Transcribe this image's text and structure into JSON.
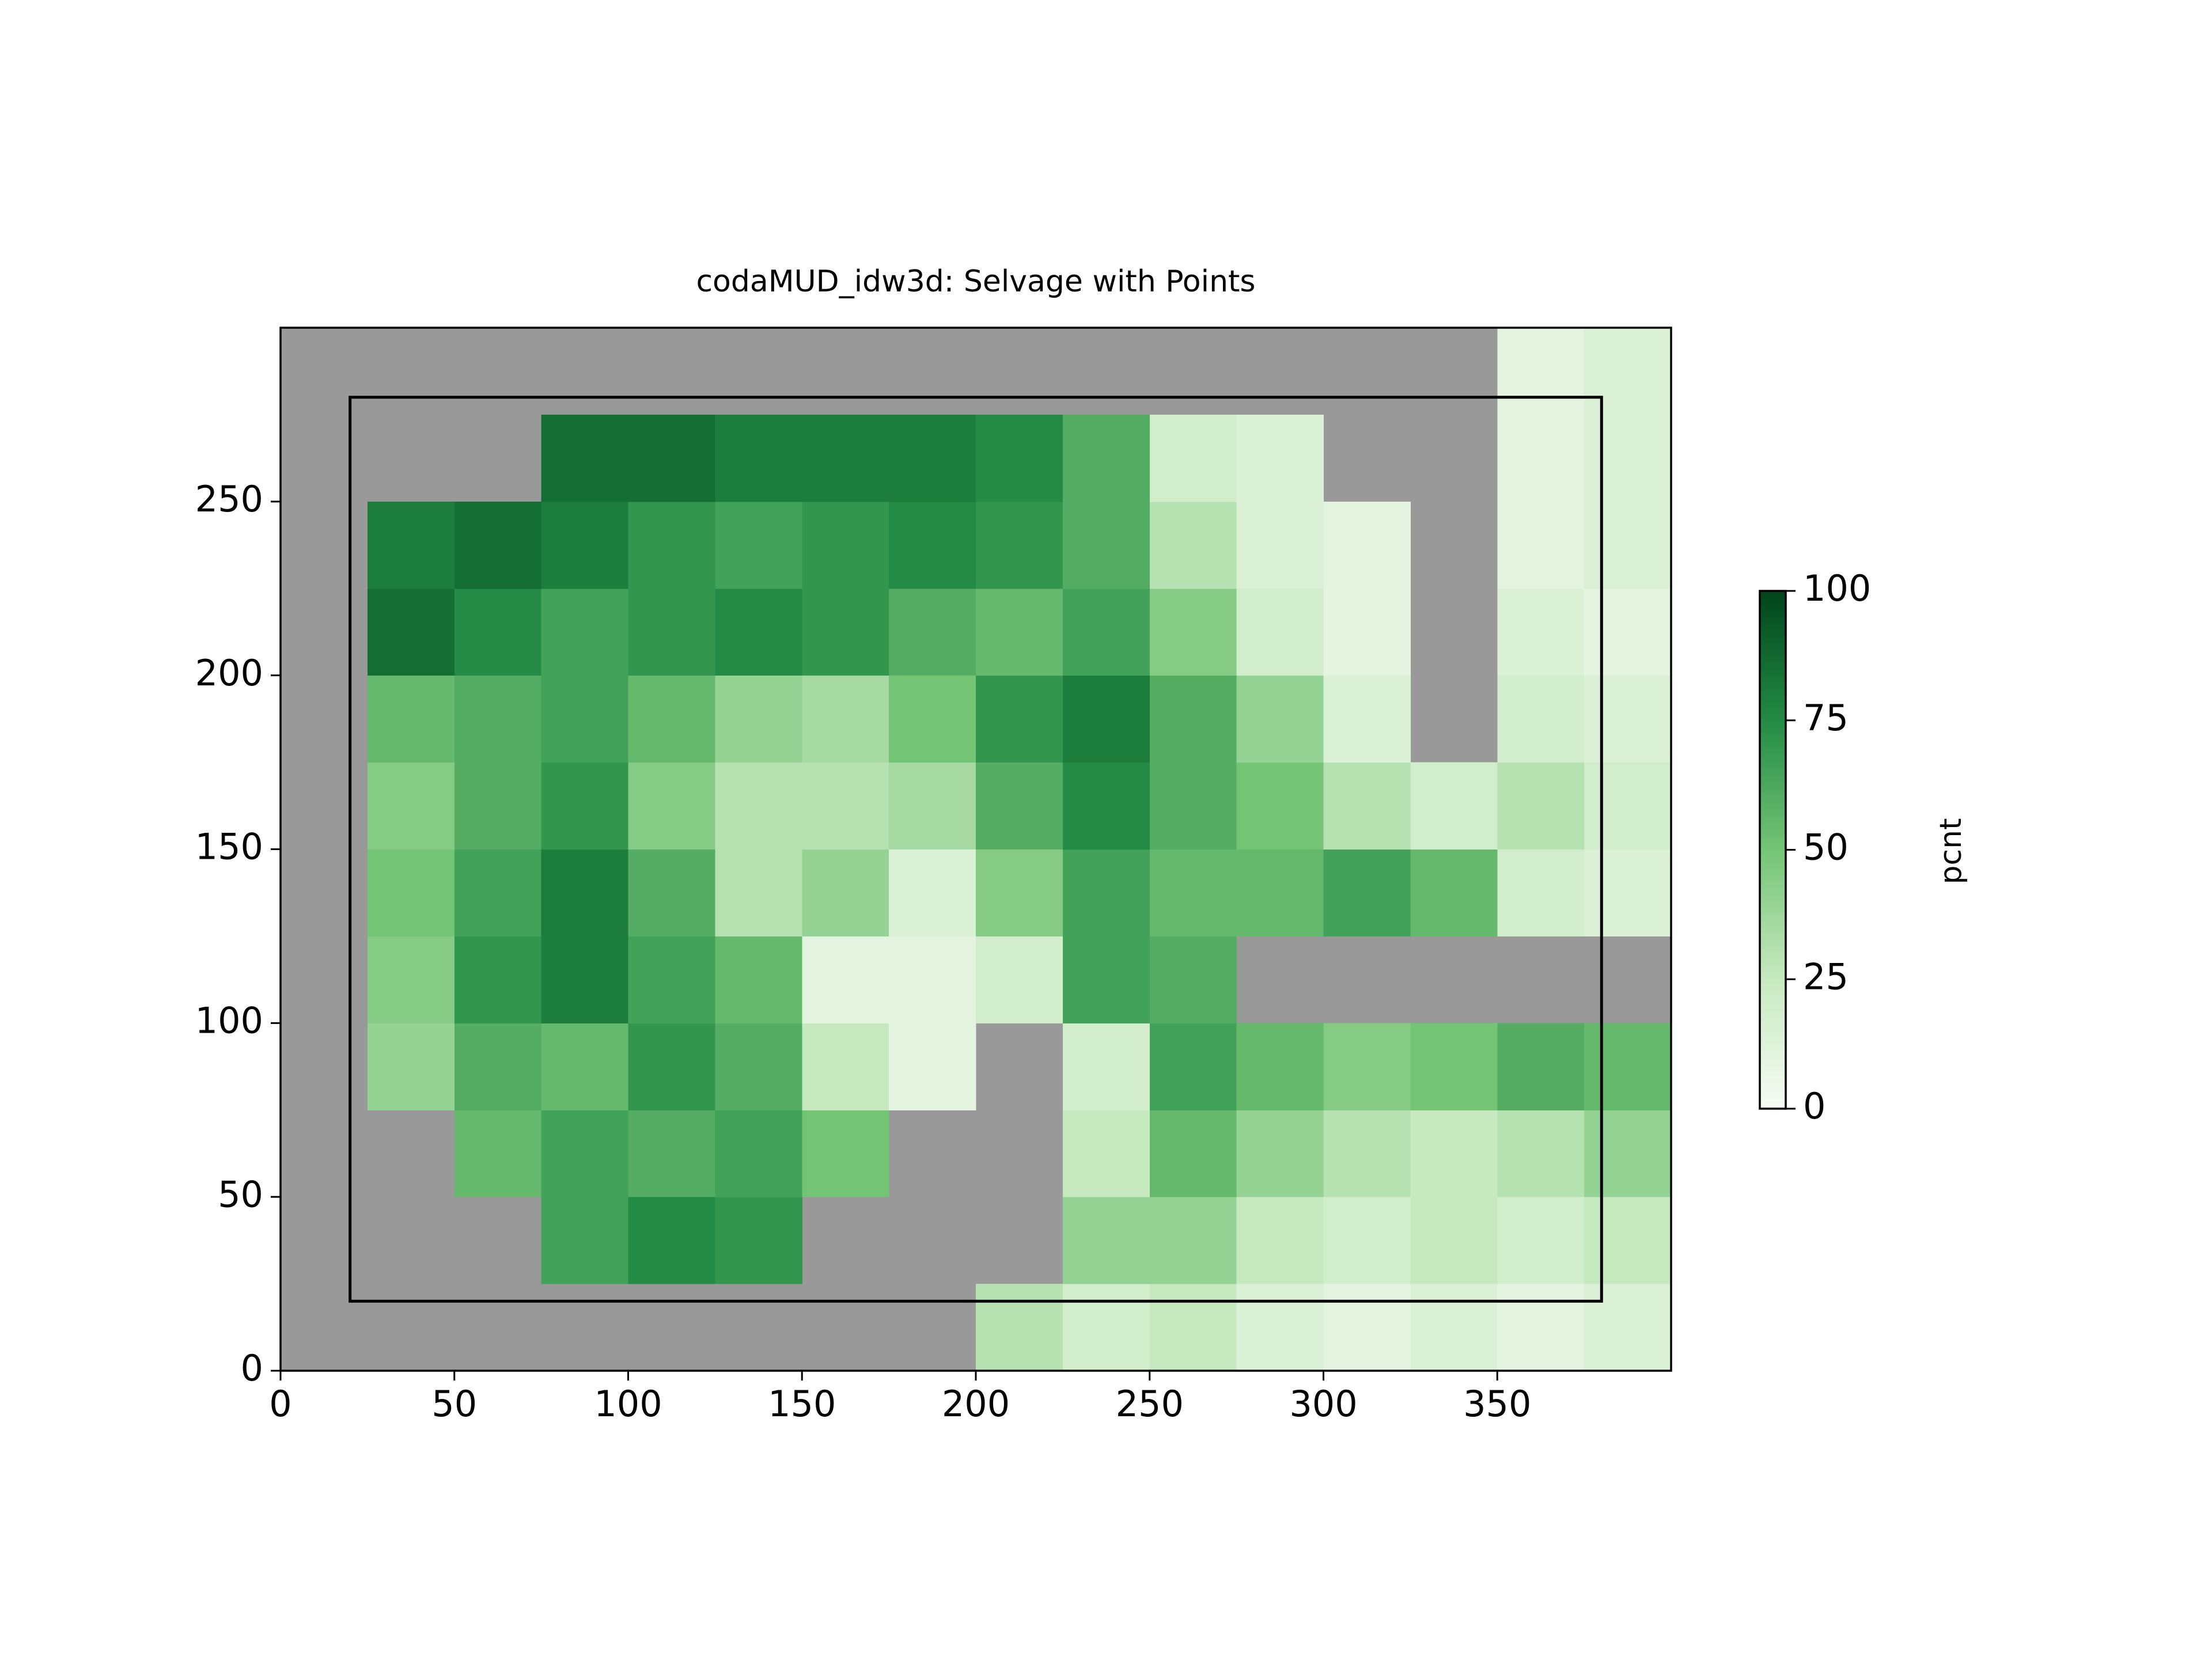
{
  "chart_data": {
    "type": "heatmap",
    "title": "codaMUD_idw3d: Selvage with Points",
    "colorbar_label": "pcnt",
    "xlim": [
      0,
      400
    ],
    "ylim": [
      0,
      300
    ],
    "xticks": [
      0,
      50,
      100,
      150,
      200,
      250,
      300,
      350
    ],
    "yticks": [
      0,
      50,
      100,
      150,
      200,
      250
    ],
    "clim": [
      0,
      100
    ],
    "cticks": [
      0,
      25,
      50,
      75,
      100
    ],
    "colormap": [
      "#f7fcf5",
      "#c7e9c0",
      "#74c476",
      "#238b45",
      "#00441b"
    ],
    "missing_color": "#999999",
    "box": {
      "x": [
        20,
        380
      ],
      "y": [
        20,
        280
      ]
    },
    "values": [
      [
        null,
        null,
        null,
        null,
        null,
        null,
        null,
        null,
        30,
        20,
        25,
        15,
        10,
        15,
        10,
        15
      ],
      [
        null,
        null,
        null,
        65,
        75,
        70,
        null,
        null,
        null,
        40,
        40,
        25,
        20,
        25,
        20,
        25
      ],
      [
        null,
        null,
        55,
        65,
        60,
        65,
        50,
        null,
        null,
        25,
        55,
        40,
        30,
        25,
        30,
        40
      ],
      [
        null,
        40,
        60,
        55,
        70,
        60,
        25,
        10,
        null,
        20,
        65,
        55,
        45,
        50,
        60,
        55
      ],
      [
        null,
        45,
        70,
        80,
        65,
        55,
        10,
        10,
        20,
        65,
        60,
        null,
        null,
        null,
        null,
        null
      ],
      [
        null,
        50,
        65,
        80,
        60,
        30,
        40,
        15,
        45,
        65,
        55,
        55,
        65,
        55,
        20,
        15
      ],
      [
        null,
        45,
        60,
        70,
        45,
        30,
        30,
        35,
        60,
        75,
        60,
        50,
        30,
        20,
        30,
        20
      ],
      [
        null,
        55,
        60,
        65,
        55,
        40,
        35,
        50,
        70,
        80,
        60,
        40,
        15,
        null,
        20,
        15
      ],
      [
        null,
        85,
        75,
        65,
        70,
        75,
        70,
        60,
        55,
        65,
        45,
        20,
        10,
        null,
        15,
        10
      ],
      [
        null,
        80,
        85,
        80,
        70,
        65,
        70,
        75,
        70,
        60,
        30,
        15,
        10,
        null,
        10,
        15
      ],
      [
        null,
        null,
        null,
        85,
        85,
        80,
        80,
        80,
        75,
        60,
        20,
        15,
        null,
        null,
        10,
        15
      ],
      [
        null,
        null,
        null,
        null,
        null,
        null,
        null,
        null,
        null,
        null,
        null,
        null,
        null,
        null,
        10,
        15
      ]
    ]
  }
}
